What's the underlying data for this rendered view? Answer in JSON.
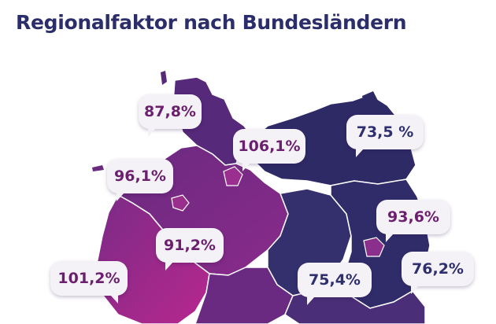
{
  "header": {
    "title": "Regionalfaktor nach Bundesländern"
  },
  "map": {
    "regions": [
      {
        "key": "schleswig-holstein",
        "value": "87,8%",
        "color": "#5b2a78"
      },
      {
        "key": "hamburg",
        "value": "106,1%",
        "color": "#8a2a8a"
      },
      {
        "key": "mecklenburg",
        "value": "73,5 %",
        "color": "#2e2a66"
      },
      {
        "key": "bremen",
        "value": "96,1%",
        "color": "#6a2a80"
      },
      {
        "key": "berlin",
        "value": "93,6%",
        "color": "#8a2f8c"
      },
      {
        "key": "niedersachsen",
        "value": "91,2%",
        "color": "#5e2a7c"
      },
      {
        "key": "nrw",
        "value": "101,2%",
        "color": "#7a2a86"
      },
      {
        "key": "sachsen-anhalt",
        "value": "75,4%",
        "color": "#32306c"
      },
      {
        "key": "brandenburg",
        "value": "76,2%",
        "color": "#35306e"
      }
    ]
  },
  "colors": {
    "title": "#2b2e6b",
    "label_magenta": "#6b1f6e",
    "label_navy": "#2e2f6e",
    "bubble_bg": "#f4f2f6"
  }
}
